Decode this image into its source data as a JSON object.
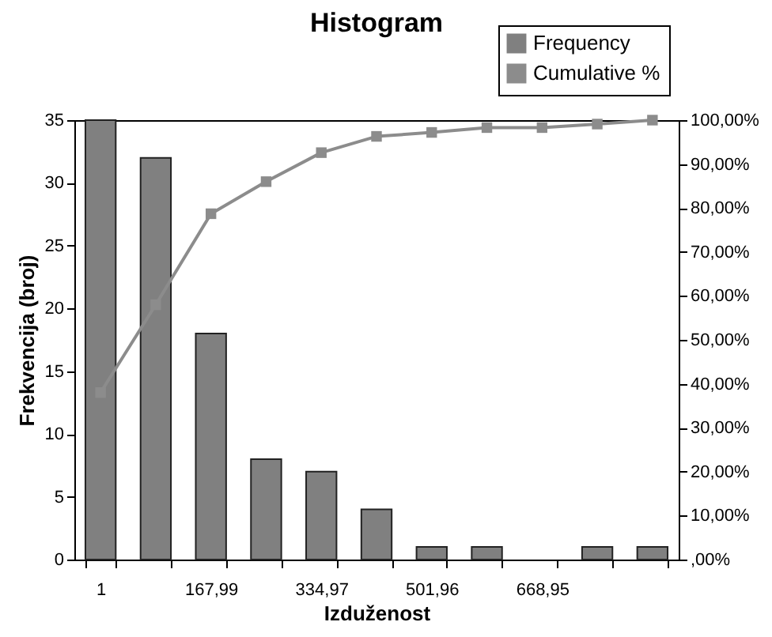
{
  "chart_data": {
    "type": "bar",
    "title": "Histogram",
    "xlabel": "Izduženost",
    "ylabel": "Frekvencija (broj)",
    "categories": [
      "1",
      null,
      "167,99",
      null,
      "334,97",
      null,
      "501,96",
      null,
      "668,95",
      null,
      null
    ],
    "series": [
      {
        "name": "Frequency",
        "color": "#808080",
        "values": [
          35,
          32,
          18,
          8,
          7,
          4,
          1,
          1,
          0,
          1,
          1
        ]
      },
      {
        "name": "Cumulative %",
        "type": "line",
        "axis": "y2",
        "color": "#8c8c8c",
        "values": [
          38,
          58,
          78.7,
          86,
          92.6,
          96.3,
          97.2,
          98.3,
          98.3,
          99.1,
          100
        ]
      }
    ],
    "ylim": [
      0,
      35
    ],
    "yticks": [
      0,
      5,
      10,
      15,
      20,
      25,
      30,
      35
    ],
    "y2lim": [
      0,
      100
    ],
    "y2ticks": [
      {
        "value": 0,
        "label": ",00%"
      },
      {
        "value": 10,
        "label": "10,00%"
      },
      {
        "value": 20,
        "label": "20,00%"
      },
      {
        "value": 30,
        "label": "30,00%"
      },
      {
        "value": 40,
        "label": "40,00%"
      },
      {
        "value": 50,
        "label": "50,00%"
      },
      {
        "value": 60,
        "label": "60,00%"
      },
      {
        "value": 70,
        "label": "70,00%"
      },
      {
        "value": 80,
        "label": "80,00%"
      },
      {
        "value": 90,
        "label": "90,00%"
      },
      {
        "value": 100,
        "label": "100,00%"
      }
    ],
    "grid": false,
    "legend": "top right",
    "marker": "square"
  }
}
